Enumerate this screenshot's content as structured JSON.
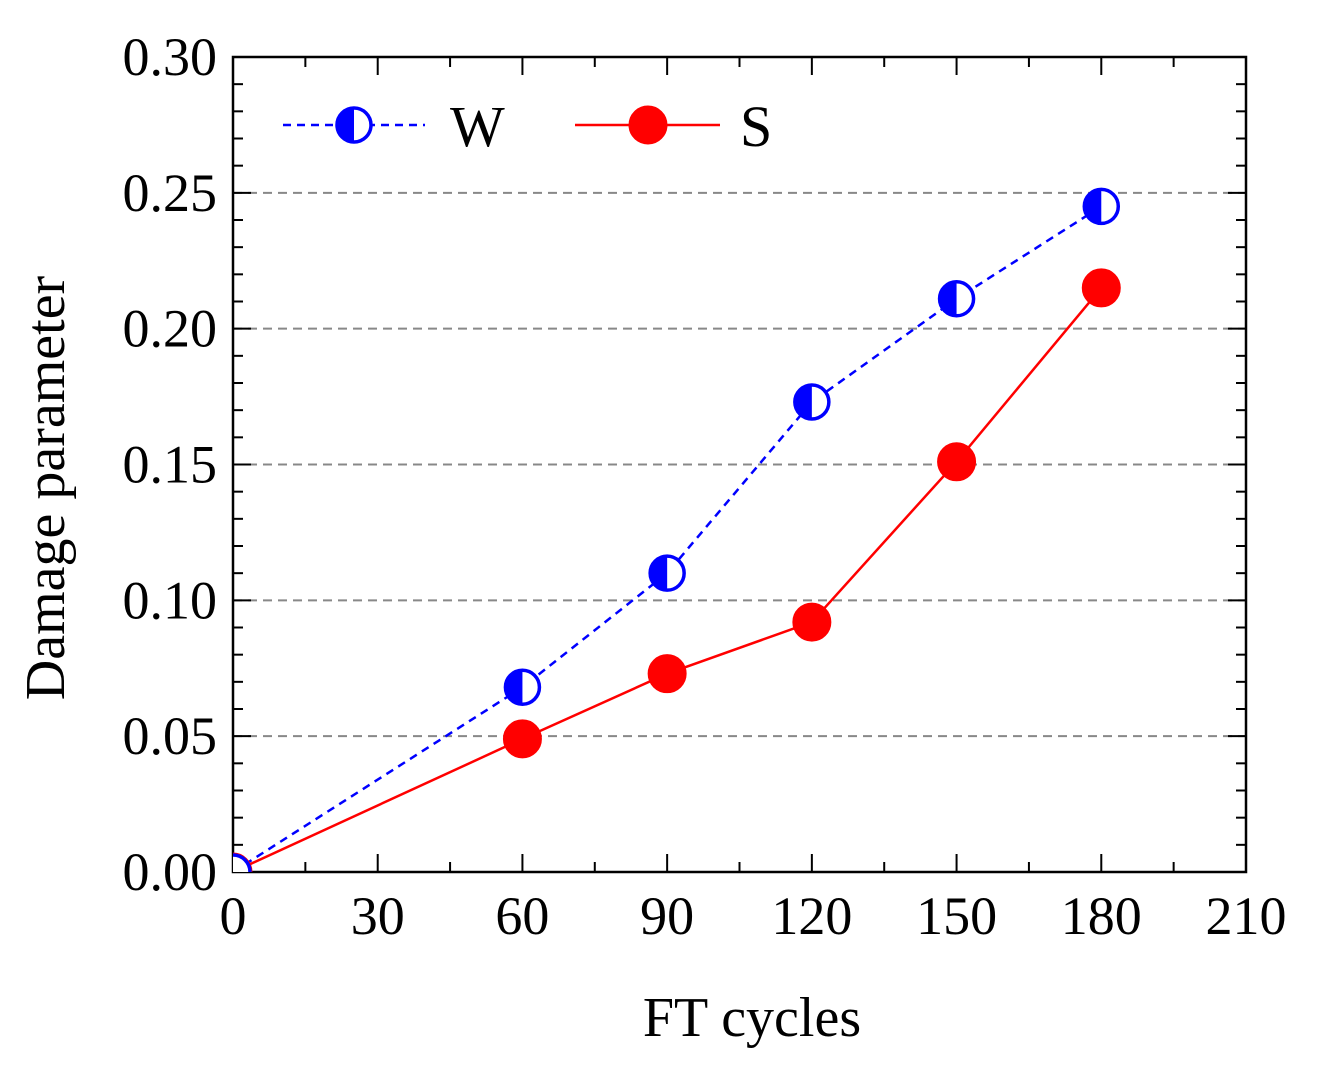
{
  "chart_data": {
    "type": "line",
    "xlabel": "FT cycles",
    "ylabel": "Damage parameter",
    "xlim": [
      0,
      210
    ],
    "ylim": [
      0,
      0.3
    ],
    "x_ticks": [
      "0",
      "30",
      "60",
      "90",
      "120",
      "150",
      "180",
      "210"
    ],
    "y_ticks": [
      "0.00",
      "0.05",
      "0.10",
      "0.15",
      "0.20",
      "0.25",
      "0.30"
    ],
    "grid": "horizontal dashed",
    "legend_position": "top-left",
    "series": [
      {
        "name": "W",
        "color": "#0000ff",
        "line_style": "dashed",
        "marker": "half-filled circle",
        "x": [
          0,
          60,
          90,
          120,
          150,
          180
        ],
        "values": [
          0.0,
          0.068,
          0.11,
          0.173,
          0.211,
          0.245
        ]
      },
      {
        "name": "S",
        "color": "#ff0000",
        "line_style": "solid",
        "marker": "filled circle",
        "x": [
          0,
          60,
          90,
          120,
          150,
          180
        ],
        "values": [
          0.0,
          0.049,
          0.073,
          0.092,
          0.151,
          0.215
        ]
      }
    ]
  }
}
